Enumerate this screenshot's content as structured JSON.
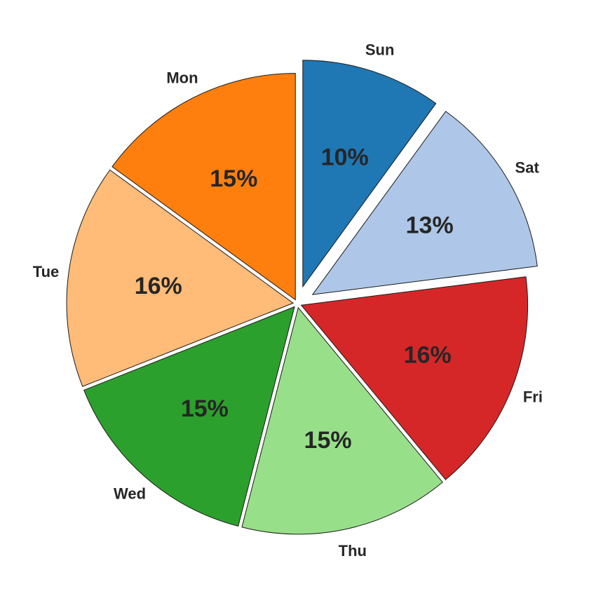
{
  "chart_data": {
    "type": "pie",
    "title": "",
    "start_angle_deg": 90,
    "direction": "clockwise",
    "slices": [
      {
        "label": "Sun",
        "value": 10,
        "pct_label": "10%",
        "color": "#1f77b4",
        "explode": 0.06
      },
      {
        "label": "Sat",
        "value": 13,
        "pct_label": "13%",
        "color": "#aec7e8",
        "explode": 0.06
      },
      {
        "label": "Fri",
        "value": 16,
        "pct_label": "16%",
        "color": "#d62728",
        "explode": 0.0
      },
      {
        "label": "Thu",
        "value": 15,
        "pct_label": "15%",
        "color": "#98df8a",
        "explode": 0.0
      },
      {
        "label": "Wed",
        "value": 15,
        "pct_label": "15%",
        "color": "#2ca02c",
        "explode": 0.0
      },
      {
        "label": "Tue",
        "value": 16,
        "pct_label": "16%",
        "color": "#ffbb78",
        "explode": 0.0
      },
      {
        "label": "Mon",
        "value": 15,
        "pct_label": "15%",
        "color": "#ff7f0e",
        "explode": 0.0
      }
    ]
  }
}
